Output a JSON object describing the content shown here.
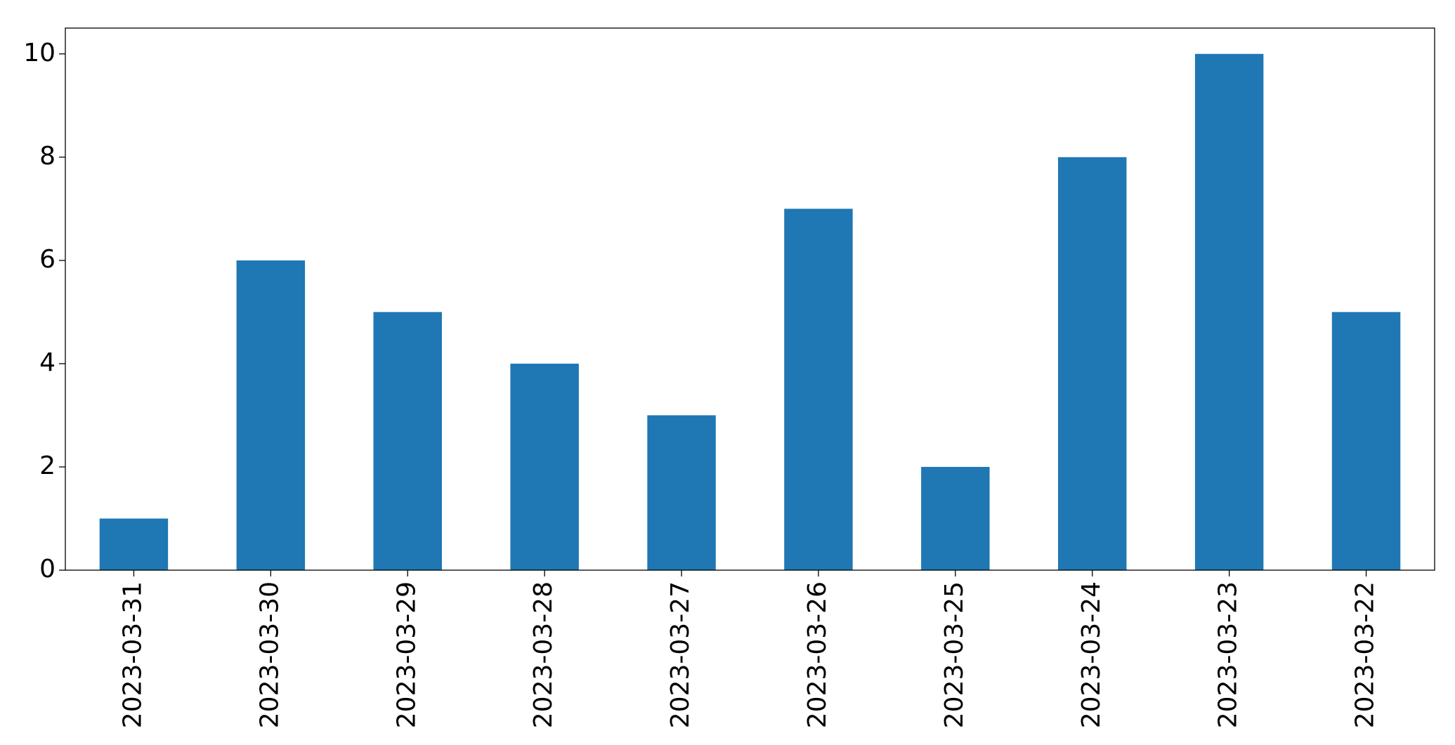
{
  "chart_data": {
    "type": "bar",
    "categories": [
      "2023-03-31",
      "2023-03-30",
      "2023-03-29",
      "2023-03-28",
      "2023-03-27",
      "2023-03-26",
      "2023-03-25",
      "2023-03-24",
      "2023-03-23",
      "2023-03-22"
    ],
    "values": [
      1,
      6,
      5,
      4,
      3,
      7,
      2,
      8,
      10,
      5
    ],
    "color": "#1f77b4",
    "ylim": [
      0,
      10.5
    ],
    "yticks": [
      0,
      2,
      4,
      6,
      8,
      10
    ],
    "grid": false
  }
}
